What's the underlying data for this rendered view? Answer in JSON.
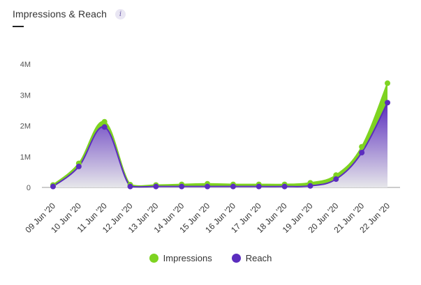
{
  "header": {
    "title": "Impressions & Reach",
    "info_glyph": "i"
  },
  "colors": {
    "impressions": "#7ed321",
    "reach": "#5b2dbe",
    "reach_fill_bottom": "#e6e6ea"
  },
  "chart_data": {
    "type": "area",
    "categories": [
      "09 Jun '20",
      "10 Jun '20",
      "11 Jun '20",
      "12 Jun '20",
      "13 Jun '20",
      "14 Jun '20",
      "15 Jun '20",
      "16 Jun '20",
      "17 Jun '20",
      "18 Jun '20",
      "19 Jun '20",
      "20 Jun '20",
      "21 Jun '20",
      "22 Jun '20"
    ],
    "series": [
      {
        "name": "Impressions",
        "values": [
          0.08,
          0.78,
          2.13,
          0.09,
          0.08,
          0.1,
          0.12,
          0.1,
          0.1,
          0.1,
          0.15,
          0.4,
          1.32,
          3.38
        ]
      },
      {
        "name": "Reach",
        "values": [
          0.03,
          0.68,
          1.96,
          0.03,
          0.03,
          0.03,
          0.03,
          0.03,
          0.03,
          0.03,
          0.05,
          0.27,
          1.13,
          2.75
        ]
      }
    ],
    "yticks": [
      "0",
      "1M",
      "2M",
      "3M",
      "4M"
    ],
    "ylim": [
      0,
      4
    ],
    "grid": false,
    "legend": "bottom"
  }
}
